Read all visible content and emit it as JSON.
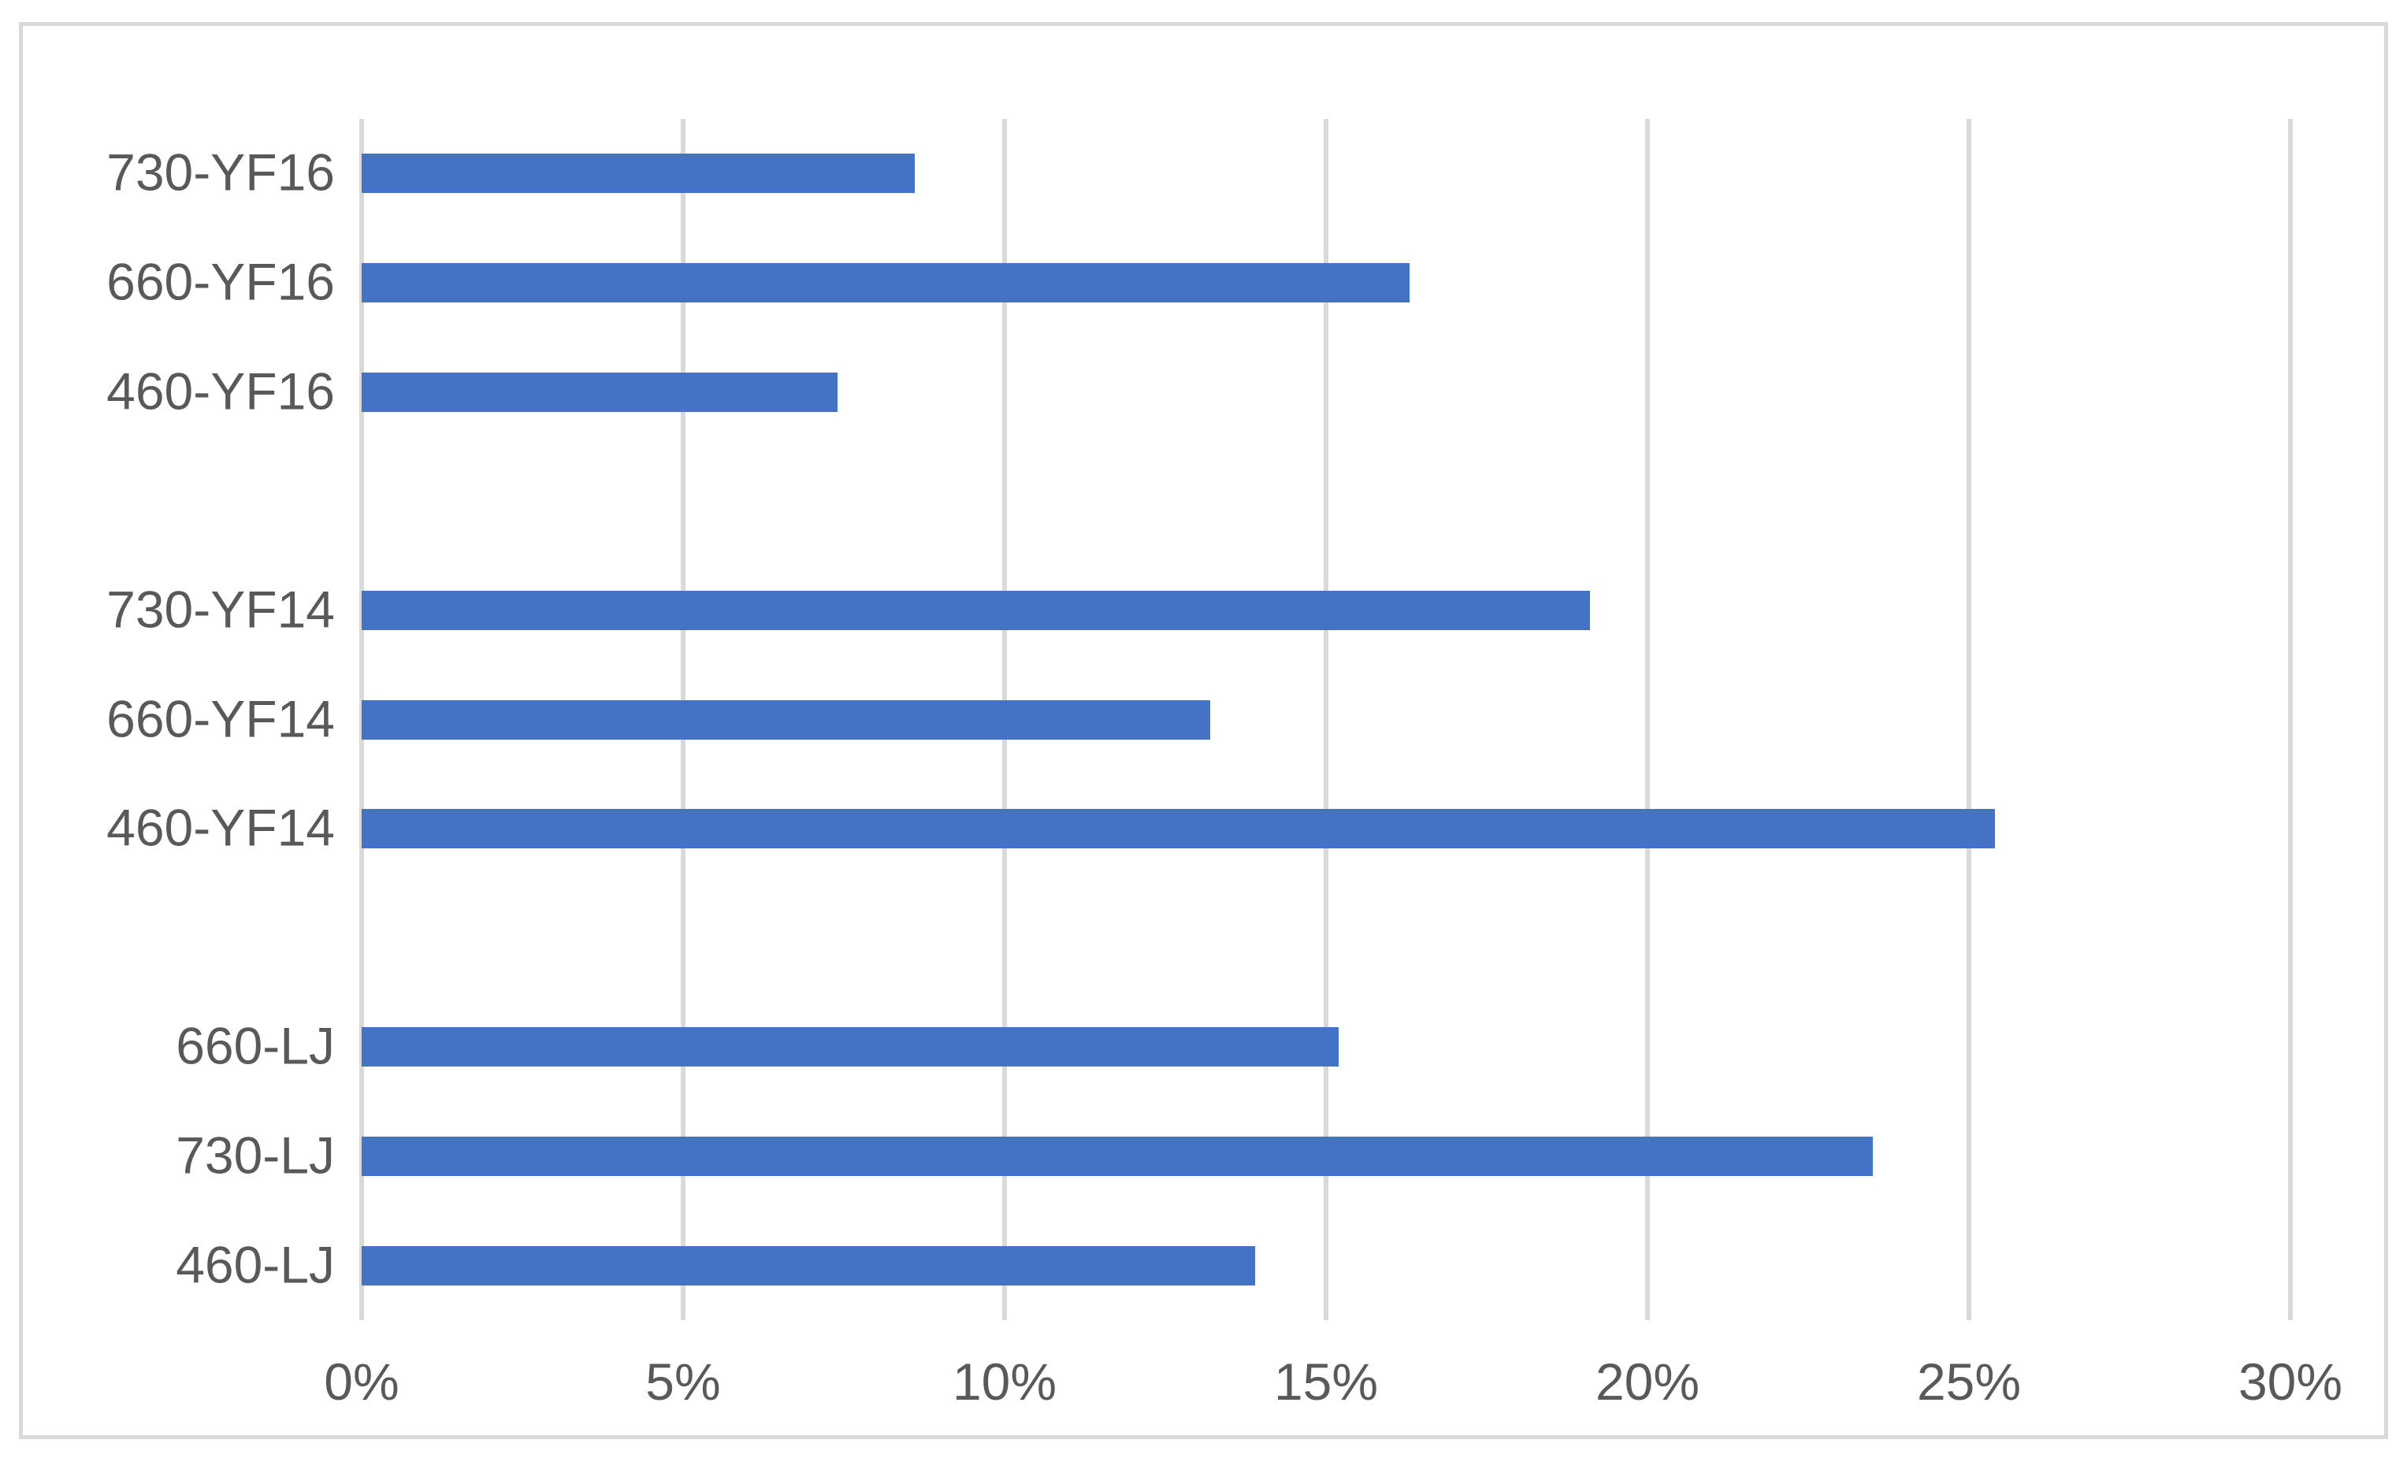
{
  "frame": {
    "background": "#ffffff",
    "border_color": "#d9d9d9"
  },
  "chart_data": {
    "type": "bar",
    "orientation": "horizontal",
    "title": "",
    "xlabel": "",
    "ylabel": "",
    "categories": [
      "730-YF16",
      "660-YF16",
      "460-YF16",
      "",
      "730-YF14",
      "660-YF14",
      "460-YF14",
      "",
      "660-LJ",
      "730-LJ",
      "460-LJ"
    ],
    "values": [
      8.6,
      16.3,
      7.4,
      null,
      19.1,
      13.2,
      25.4,
      null,
      15.2,
      23.5,
      13.9
    ],
    "value_unit": "%",
    "xlim": [
      0,
      30
    ],
    "x_ticks": [
      {
        "value": 0,
        "label": "0%"
      },
      {
        "value": 5,
        "label": "5%"
      },
      {
        "value": 10,
        "label": "10%"
      },
      {
        "value": 15,
        "label": "15%"
      },
      {
        "value": 20,
        "label": "20%"
      },
      {
        "value": 25,
        "label": "25%"
      },
      {
        "value": 30,
        "label": "30%"
      }
    ],
    "grid": "vertical-only",
    "legend_position": "none",
    "bar_color": "#4472c4",
    "gridline_color": "#d9d9d9",
    "tick_label_color": "#595959"
  }
}
